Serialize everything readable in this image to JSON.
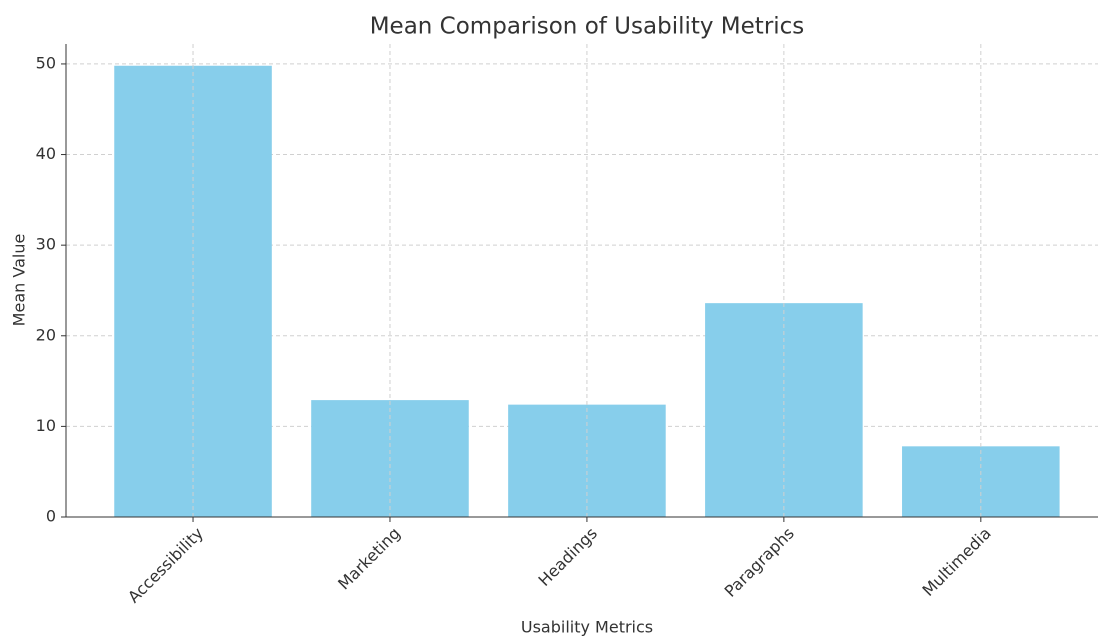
{
  "chart_data": {
    "type": "bar",
    "title": "Mean Comparison of Usability Metrics",
    "x_label": "Usability Metrics",
    "y_label": "Mean Value",
    "categories": [
      "Accessibility",
      "Marketing",
      "Headings",
      "Paragraphs",
      "Multimedia"
    ],
    "values": [
      49.8,
      12.9,
      12.4,
      23.6,
      7.8
    ],
    "color": "#87ceeb",
    "ylim": [
      0,
      52.2
    ],
    "yticks": [
      0,
      10,
      20,
      30,
      40,
      50
    ],
    "grid": true
  }
}
